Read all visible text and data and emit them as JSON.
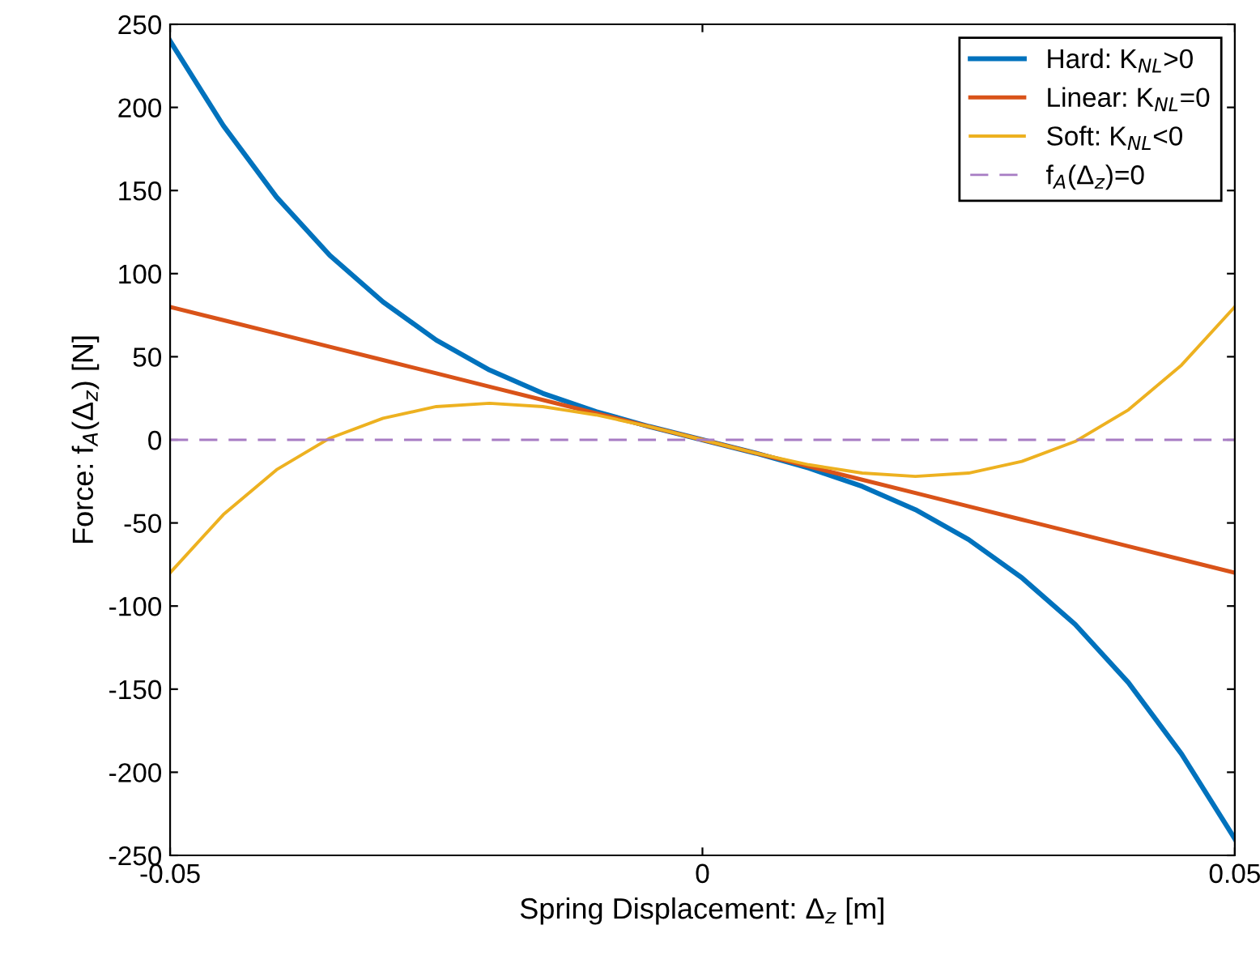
{
  "chart_data": {
    "type": "line",
    "xlabel": "Spring Displacement: Δ$_{z}$ [m]",
    "ylabel": "Force: f$_{A}$(Δ$_{z}$) [N]",
    "x": [
      -0.05,
      -0.045,
      -0.04,
      -0.035,
      -0.03,
      -0.025,
      -0.02,
      -0.015,
      -0.01,
      -0.005,
      0,
      0.005,
      0.01,
      0.015,
      0.02,
      0.025,
      0.03,
      0.035,
      0.04,
      0.045,
      0.05
    ],
    "series": [
      {
        "name": "Hard: K$_{NL}$>0",
        "color": "#0072bd",
        "values": [
          240,
          189,
          146,
          111,
          83,
          60,
          42,
          28,
          17,
          8,
          0,
          -8,
          -17,
          -28,
          -42,
          -60,
          -83,
          -111,
          -146,
          -189,
          -240
        ]
      },
      {
        "name": "Linear: K$_{NL}$=0",
        "color": "#d95319",
        "values": [
          80,
          72,
          64,
          56,
          48,
          40,
          32,
          24,
          16,
          8,
          0,
          -8,
          -16,
          -24,
          -32,
          -40,
          -48,
          -56,
          -64,
          -72,
          -80
        ]
      },
      {
        "name": "Soft: K$_{NL}$<0",
        "color": "#edb120",
        "values": [
          -80,
          -45,
          -18,
          1,
          13,
          20,
          22,
          20,
          15,
          8,
          0,
          -8,
          -15,
          -20,
          -22,
          -20,
          -13,
          -1,
          18,
          45,
          80
        ]
      },
      {
        "name": "f$_{A}$(Δ$_{z}$)=0",
        "color": "#a77cc4",
        "line_style": "dashed",
        "values": [
          0,
          0,
          0,
          0,
          0,
          0,
          0,
          0,
          0,
          0,
          0,
          0,
          0,
          0,
          0,
          0,
          0,
          0,
          0,
          0,
          0
        ]
      }
    ],
    "xlim": [
      -0.05,
      0.05
    ],
    "xticks": [
      {
        "value": -0.05,
        "label": "-0.05"
      },
      {
        "value": 0,
        "label": "0"
      },
      {
        "value": 0.05,
        "label": "0.05"
      }
    ],
    "ylim": [
      -250,
      250
    ],
    "yticks": [
      -250,
      -200,
      -150,
      -100,
      -50,
      0,
      50,
      100,
      150,
      200,
      250
    ],
    "grid": false,
    "legend": "top right",
    "line_style": "solid",
    "marker": "none"
  }
}
